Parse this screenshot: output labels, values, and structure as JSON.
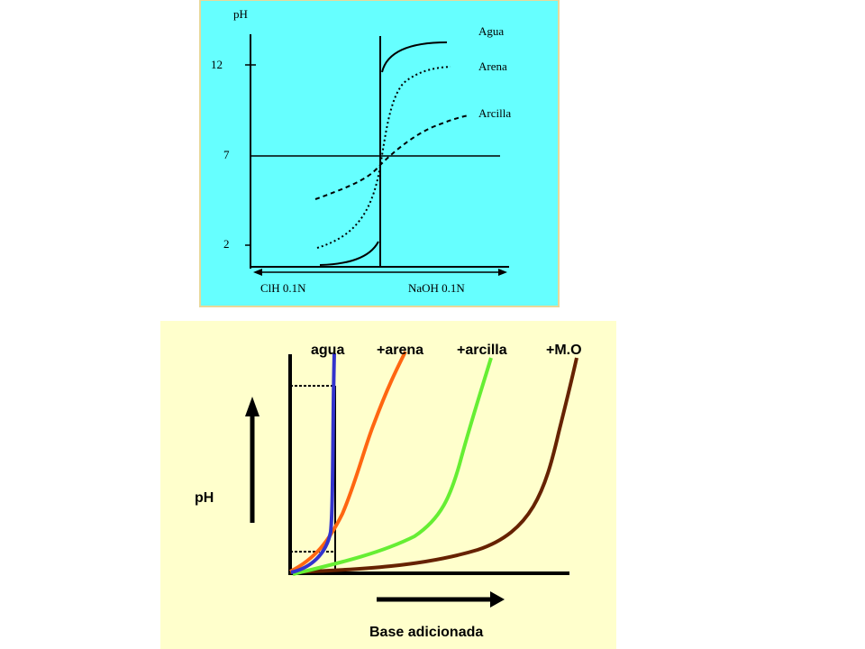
{
  "colors": {
    "top_panel_bg": "#66ffff",
    "top_panel_border": "#e8d89a",
    "bottom_panel_bg": "#ffffcc",
    "axis": "#000000",
    "agua_blue": "#3333cc",
    "arena_orange": "#ff6611",
    "arcilla_green": "#66ee33",
    "mo_brown": "#662200"
  },
  "chart_data": [
    {
      "type": "line",
      "title": "",
      "ylabel": "pH",
      "y_ticks": [
        "12",
        "7",
        "2"
      ],
      "x_left_label": "ClH 0.1N",
      "x_right_label": "NaOH 0.1N",
      "series": [
        {
          "name": "Agua",
          "style": "solid"
        },
        {
          "name": "Arena",
          "style": "dotted"
        },
        {
          "name": "Arcilla",
          "style": "dashed"
        }
      ]
    },
    {
      "type": "line",
      "title": "",
      "ylabel": "pH",
      "xlabel": "Base adicionada",
      "series": [
        {
          "name": "agua",
          "color": "#3333cc"
        },
        {
          "name": "+arena",
          "color": "#ff6611"
        },
        {
          "name": "+arcilla",
          "color": "#66ee33"
        },
        {
          "name": "+M.O",
          "color": "#662200"
        }
      ]
    }
  ]
}
